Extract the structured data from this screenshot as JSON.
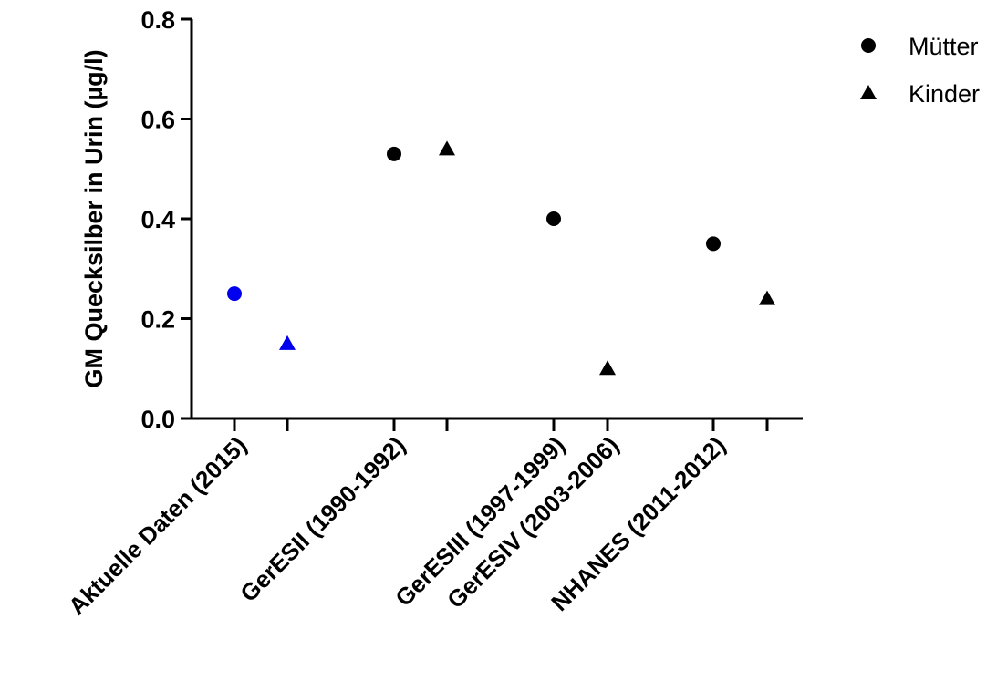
{
  "chart_data": {
    "type": "scatter",
    "title": "",
    "ylabel": "GM Quecksilber in Urin (µg/l)",
    "xlabel": "",
    "ylim": [
      0,
      0.8
    ],
    "yticks": [
      "0.0",
      "0.2",
      "0.4",
      "0.6",
      "0.8"
    ],
    "categories": [
      "Aktuelle Daten (2015)",
      "GerESII (1990-1992)",
      "GerESIII (1997-1999)",
      "GerESIV (2003-2006)",
      "NHANES (2011-2012)"
    ],
    "points": [
      {
        "series": "Mütter",
        "marker": "circle",
        "category": "Aktuelle Daten (2015)",
        "value": 0.25,
        "color": "#0000ee"
      },
      {
        "series": "Kinder",
        "marker": "triangle",
        "category": "Aktuelle Daten (2015)",
        "value": 0.15,
        "color": "#0000ee"
      },
      {
        "series": "Mütter",
        "marker": "circle",
        "category": "GerESII (1990-1992)",
        "value": 0.53,
        "color": "#000000"
      },
      {
        "series": "Kinder",
        "marker": "triangle",
        "category": "GerESII (1990-1992)",
        "value": 0.54,
        "color": "#000000"
      },
      {
        "series": "Mütter",
        "marker": "circle",
        "category": "GerESIII (1997-1999)",
        "value": 0.4,
        "color": "#000000"
      },
      {
        "series": "Kinder",
        "marker": "triangle",
        "category": "GerESIV (2003-2006)",
        "value": 0.1,
        "color": "#000000"
      },
      {
        "series": "Mütter",
        "marker": "circle",
        "category": "NHANES (2011-2012)",
        "value": 0.35,
        "color": "#000000"
      },
      {
        "series": "Kinder",
        "marker": "triangle",
        "category": "NHANES (2011-2012)",
        "value": 0.24,
        "color": "#000000"
      }
    ],
    "legend": {
      "position": "top-right",
      "entries": [
        {
          "name": "Mütter",
          "marker": "circle"
        },
        {
          "name": "Kinder",
          "marker": "triangle"
        }
      ]
    },
    "grid": false
  }
}
